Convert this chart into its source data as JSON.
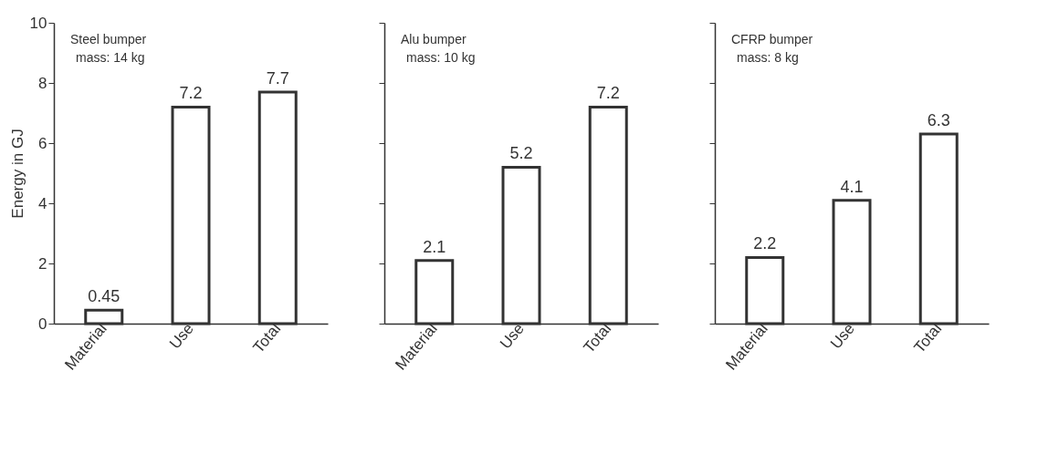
{
  "chart_data": [
    {
      "type": "bar",
      "ylabel": "Energy in GJ",
      "annotations": [
        "Steel bumper",
        "mass: 14 kg"
      ],
      "categories": [
        "Material",
        "Use",
        "Total"
      ],
      "values": [
        0.45,
        7.2,
        7.7
      ],
      "colors": [
        "#ffffff",
        "#ffffff",
        "#ffffff"
      ],
      "data_labels": true,
      "ylim": [
        0,
        10
      ],
      "yticks": [
        0,
        2,
        4,
        6,
        8,
        10
      ],
      "grid": false
    },
    {
      "type": "bar",
      "annotations": [
        "Alu bumper",
        "mass: 10 kg"
      ],
      "categories": [
        "Material",
        "Use",
        "Total"
      ],
      "values": [
        2.1,
        5.2,
        7.2
      ],
      "colors": [
        "#ffffff",
        "#ffffff",
        "#ffffff"
      ],
      "data_labels": true,
      "ylim": [
        0,
        10
      ],
      "yticks": [
        0,
        2,
        4,
        6,
        8,
        10
      ],
      "tick_labels": "x",
      "grid": false
    },
    {
      "type": "bar",
      "annotations": [
        "CFRP bumper",
        "mass: 8 kg"
      ],
      "categories": [
        "Material",
        "Use",
        "Total"
      ],
      "values": [
        2.2,
        4.1,
        6.3
      ],
      "colors": [
        "#ffffff",
        "#ffffff",
        "#ffffff"
      ],
      "data_labels": true,
      "ylim": [
        0,
        10
      ],
      "yticks": [
        0,
        2,
        4,
        6,
        8,
        10
      ],
      "tick_labels": "x",
      "grid": false
    }
  ]
}
